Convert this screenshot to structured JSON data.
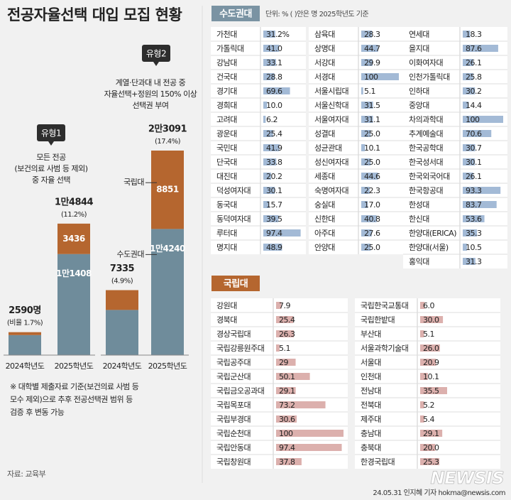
{
  "title": "전공자율선택 대입 모집 현황",
  "chart_data": [
    {
      "type": "stacked_bar",
      "badge": "유형1",
      "subtitle": [
        "모든 전공",
        "(보건의료 사범 등 제외)",
        "중 자율 선택"
      ],
      "categories": [
        "2024학년도",
        "2025학년도"
      ],
      "series": [
        {
          "color": "#6f8c9b",
          "values": [
            2260,
            11408
          ],
          "value_labels": [
            null,
            "1만1408"
          ]
        },
        {
          "color": "#b5662f",
          "values": [
            330,
            3436
          ],
          "value_labels": [
            null,
            "3436"
          ]
        }
      ],
      "totals": [
        2590,
        14844
      ],
      "total_labels": [
        "2590명",
        "1만4844"
      ],
      "ratios": [
        1.7,
        11.2
      ],
      "ratio_labels": [
        "(비율 1.7%)",
        "(11.2%)"
      ]
    },
    {
      "type": "stacked_bar",
      "badge": "유형2",
      "subtitle": [
        "계열·단과대 내 전공 중",
        "자율선택+정원의 150% 이상",
        "선택권 부여"
      ],
      "categories": [
        "2024학년도",
        "2025학년도"
      ],
      "series": [
        {
          "name": "수도권대",
          "color": "#6f8c9b",
          "values": [
            5100,
            14240
          ],
          "value_labels": [
            null,
            "1만4240"
          ]
        },
        {
          "name": "국립대",
          "color": "#b5662f",
          "values": [
            2235,
            8851
          ],
          "value_labels": [
            null,
            "8851"
          ]
        }
      ],
      "totals": [
        7335,
        23091
      ],
      "total_labels": [
        "7335",
        "2만3091"
      ],
      "ratios": [
        4.9,
        17.4
      ],
      "ratio_labels": [
        "(4.9%)",
        "(17.4%)"
      ]
    }
  ],
  "footnote": [
    "※ 대학별 제출자료 기준(보건의료 사범 등",
    "모수 제외)으로 추후 전공선택권 범위 등",
    "검증 후 변동 가능"
  ],
  "source": "자료: 교육부",
  "credit": "24.05.31 인지혜 기자 hokma@newsis.com",
  "watermark": "NEWSIS",
  "tables": [
    {
      "title": "수도권대",
      "note": "단위: % ( )안은 명 2025학년도 기준",
      "bar_color": "#a3bad6",
      "header_color": "#7a93a3",
      "columns": [
        {
          "names": [
            "가천대",
            "가톨릭대",
            "강남대",
            "건국대",
            "경기대",
            "경희대",
            "고려대",
            "광운대",
            "국민대",
            "단국대",
            "대진대",
            "덕성여자대",
            "동국대",
            "동덕여자대",
            "루터대",
            "명지대"
          ],
          "values": [
            31.2,
            41,
            33.1,
            28.8,
            69.6,
            10,
            6.2,
            25.4,
            41.9,
            33.8,
            20.2,
            30.1,
            15.7,
            39.5,
            97.4,
            48.9
          ],
          "value_labels": [
            "31.2%",
            "41.0",
            "33.1",
            "28.8",
            "69.6",
            "10.0",
            "6.2",
            "25.4",
            "41.9",
            "33.8",
            "20.2",
            "30.1",
            "15.7",
            "39.5",
            "97.4",
            "48.9"
          ]
        },
        {
          "names": [
            "삼육대",
            "상명대",
            "서강대",
            "서경대",
            "서울시립대",
            "서울신학대",
            "서울여자대",
            "성결대",
            "성균관대",
            "성신여자대",
            "세종대",
            "숙명여자대",
            "숭실대",
            "신한대",
            "아주대",
            "안양대"
          ],
          "values": [
            28.3,
            44.7,
            29.9,
            100,
            5.1,
            31.5,
            31.1,
            25,
            10.1,
            25,
            44.6,
            22.3,
            17,
            40.8,
            27.6,
            25
          ],
          "value_labels": [
            "28.3",
            "44.7",
            "29.9",
            "100",
            "5.1",
            "31.5",
            "31.1",
            "25.0",
            "10.1",
            "25.0",
            "44.6",
            "22.3",
            "17.0",
            "40.8",
            "27.6",
            "25.0"
          ]
        },
        {
          "names": [
            "연세대",
            "을지대",
            "이화여자대",
            "인천가톨릭대",
            "인하대",
            "중앙대",
            "차의과학대",
            "추계예술대",
            "한국공학대",
            "한국성서대",
            "한국외국어대",
            "한국항공대",
            "한성대",
            "한신대",
            "한양대(ERICA)",
            "한양대(서울)",
            "홍익대"
          ],
          "values": [
            18.3,
            87.6,
            26.1,
            25.8,
            30.2,
            14.4,
            100,
            70.6,
            30.7,
            30.1,
            26.1,
            93.3,
            83.7,
            53.6,
            35.3,
            10.5,
            31.3
          ],
          "value_labels": [
            "18.3",
            "87.6",
            "26.1",
            "25.8",
            "30.2",
            "14.4",
            "100",
            "70.6",
            "30.7",
            "30.1",
            "26.1",
            "93.3",
            "83.7",
            "53.6",
            "35.3",
            "10.5",
            "31.3"
          ]
        }
      ]
    },
    {
      "title": "국립대",
      "bar_color": "#dcb0ad",
      "header_color": "#b5662f",
      "columns": [
        {
          "names": [
            "강원대",
            "경북대",
            "경상국립대",
            "국립강릉원주대",
            "국립공주대",
            "국립군산대",
            "국립금오공과대",
            "국립목포대",
            "국립부경대",
            "국립순천대",
            "국립안동대",
            "국립창원대"
          ],
          "values": [
            7.9,
            25.4,
            26.3,
            5.1,
            29,
            50.1,
            29.1,
            73.2,
            30.6,
            100,
            97.4,
            37.8
          ],
          "value_labels": [
            "7.9",
            "25.4",
            "26.3",
            "5.1",
            "29",
            "50.1",
            "29.1",
            "73.2",
            "30.6",
            "100",
            "97.4",
            "37.8"
          ]
        },
        {
          "names": [
            "국립한국교통대",
            "국립한밭대",
            "부산대",
            "서울과학기술대",
            "서울대",
            "인천대",
            "전남대",
            "전북대",
            "제주대",
            "충남대",
            "충북대",
            "한경국립대"
          ],
          "values": [
            6,
            30,
            5.1,
            26,
            20.9,
            10.1,
            35.5,
            5.2,
            5.4,
            29.1,
            20,
            25.3
          ],
          "value_labels": [
            "6.0",
            "30.0",
            "5.1",
            "26.0",
            "20.9",
            "10.1",
            "35.5",
            "5.2",
            "5.4",
            "29.1",
            "20.0",
            "25.3"
          ]
        }
      ]
    }
  ]
}
